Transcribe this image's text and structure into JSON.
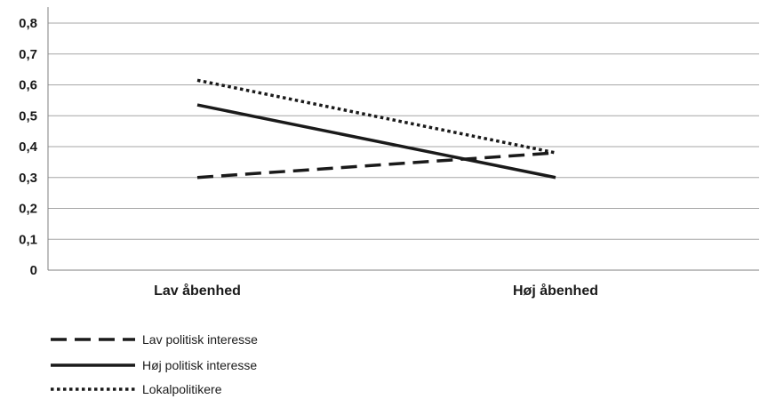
{
  "chart_data": {
    "type": "line",
    "categories": [
      "Lav åbenhed",
      "Høj åbenhed"
    ],
    "series": [
      {
        "name": "Lav politisk interesse",
        "values": [
          0.3,
          0.38
        ],
        "style": "dashed",
        "color": "#1a1a1a"
      },
      {
        "name": "Høj politisk interesse",
        "values": [
          0.535,
          0.3
        ],
        "style": "solid",
        "color": "#1a1a1a"
      },
      {
        "name": "Lokalpolitikere",
        "values": [
          0.615,
          0.38
        ],
        "style": "dotted",
        "color": "#1a1a1a"
      }
    ],
    "yticks": [
      "0",
      "0,1",
      "0,2",
      "0,3",
      "0,4",
      "0,5",
      "0,6",
      "0,7",
      "0,8"
    ],
    "ylim": [
      0,
      0.8
    ],
    "grid": true,
    "legend": "bottom-left",
    "title": "",
    "xlabel": "",
    "ylabel": ""
  }
}
